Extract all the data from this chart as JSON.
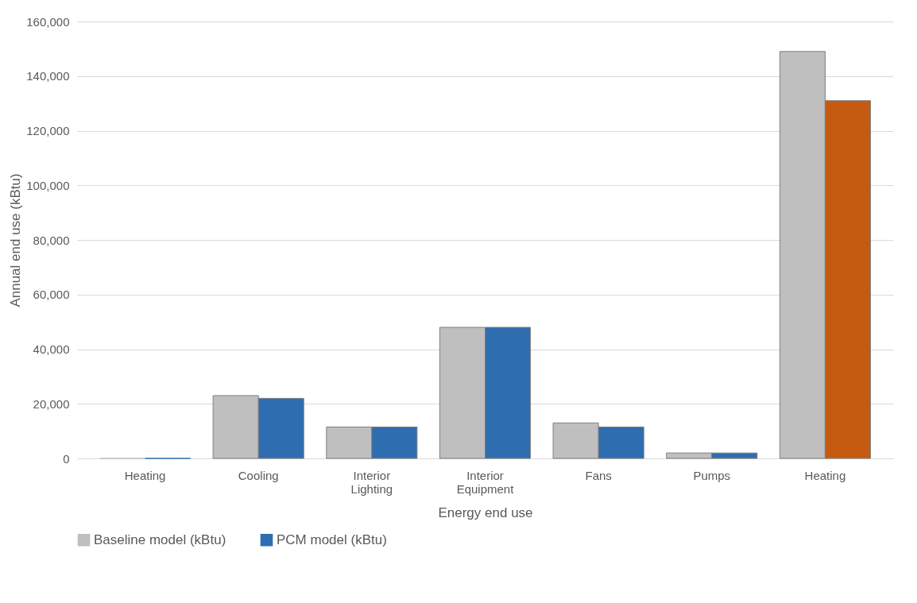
{
  "chart_data": {
    "type": "bar",
    "xlabel": "Energy end use",
    "ylabel": "Annual end use (kBtu)",
    "categories": [
      "Heating",
      "Cooling",
      "Interior Lighting",
      "Interior Equipment",
      "Fans",
      "Pumps",
      "Heating"
    ],
    "series": [
      {
        "name": "Baseline model (kBtu)",
        "color": "#bfbfbf",
        "values": [
          0,
          23000,
          11500,
          48000,
          13000,
          2000,
          149000
        ]
      },
      {
        "name": "PCM model (kBtu)",
        "color": "#2e6eb0",
        "colors": [
          "#2e6eb0",
          "#2e6eb0",
          "#2e6eb0",
          "#2e6eb0",
          "#2e6eb0",
          "#2e6eb0",
          "#c55a11"
        ],
        "values": [
          0,
          22000,
          11500,
          48000,
          11500,
          2000,
          131000
        ]
      }
    ],
    "ylim": [
      0,
      160000
    ],
    "yticks": [
      {
        "value": 0,
        "label": "0"
      },
      {
        "value": 20000,
        "label": "20,000"
      },
      {
        "value": 40000,
        "label": "40,000"
      },
      {
        "value": 60000,
        "label": "60,000"
      },
      {
        "value": 80000,
        "label": "80,000"
      },
      {
        "value": 100000,
        "label": "100,000"
      },
      {
        "value": 120000,
        "label": "120,000"
      },
      {
        "value": 140000,
        "label": "140,000"
      },
      {
        "value": 160000,
        "label": "160,000"
      }
    ],
    "grid": "y",
    "legend": "bottom"
  }
}
